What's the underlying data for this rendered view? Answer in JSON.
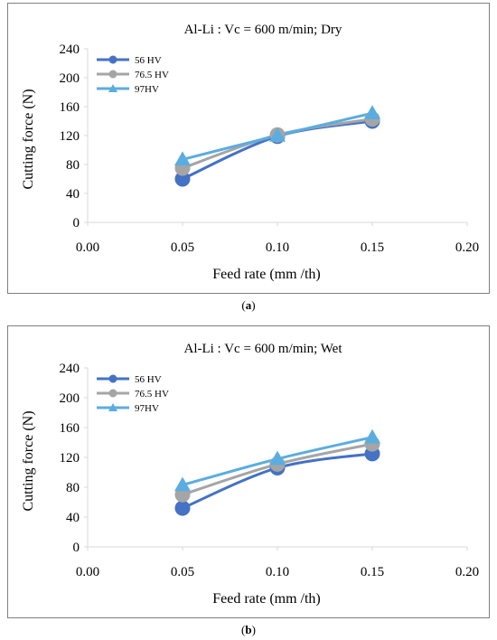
{
  "chart_data": [
    {
      "panel": "a",
      "type": "line",
      "title": "Al-Li : Vc = 600 m/min;  Dry",
      "xlabel": "Feed rate (mm /th)",
      "ylabel": "Cutting force (N)",
      "xlim": [
        0,
        0.2
      ],
      "ylim": [
        0,
        240
      ],
      "xticks": [
        "0.00",
        "0.05",
        "0.10",
        "0.15",
        "0.20"
      ],
      "yticks": [
        "0",
        "40",
        "80",
        "120",
        "160",
        "200",
        "240"
      ],
      "x": [
        0.05,
        0.1,
        0.15
      ],
      "legend": "top-left",
      "grid": false,
      "series": [
        {
          "name": "56 HV",
          "values": [
            60,
            119,
            140
          ],
          "marker": "circle",
          "color": "#4472c4"
        },
        {
          "name": "76.5 HV",
          "values": [
            75,
            121,
            143
          ],
          "marker": "circle",
          "color": "#a5a5a5"
        },
        {
          "name": "97HV",
          "values": [
            87,
            120,
            151
          ],
          "marker": "triangle",
          "color": "#5aade0"
        }
      ]
    },
    {
      "panel": "b",
      "type": "line",
      "title": "Al-Li : Vc = 600 m/min;  Wet",
      "xlabel": "Feed rate (mm /th)",
      "ylabel": "Cutting force (N)",
      "xlim": [
        0,
        0.2
      ],
      "ylim": [
        0,
        240
      ],
      "xticks": [
        "0.00",
        "0.05",
        "0.10",
        "0.15",
        "0.20"
      ],
      "yticks": [
        "0",
        "40",
        "80",
        "120",
        "160",
        "200",
        "240"
      ],
      "x": [
        0.05,
        0.1,
        0.15
      ],
      "legend": "top-left",
      "grid": false,
      "series": [
        {
          "name": "56 HV",
          "values": [
            52,
            106,
            125
          ],
          "marker": "circle",
          "color": "#4472c4"
        },
        {
          "name": "76.5 HV",
          "values": [
            70,
            111,
            138
          ],
          "marker": "circle",
          "color": "#a5a5a5"
        },
        {
          "name": "97HV",
          "values": [
            83,
            118,
            147
          ],
          "marker": "triangle",
          "color": "#5aade0"
        }
      ]
    }
  ],
  "captions": {
    "a": "(a)",
    "b": "(b)"
  },
  "colors": {
    "axis": "#d9d9d9",
    "frame": "#7f7f7f"
  }
}
